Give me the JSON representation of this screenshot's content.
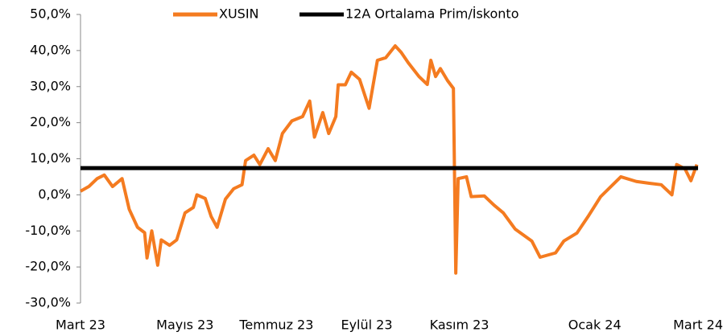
{
  "chart_data": {
    "type": "line",
    "series": [
      {
        "name": "XUSIN",
        "color": "#f47b20",
        "x": [
          0,
          0.7,
          1.4,
          2,
          2.7,
          3.5,
          4.1,
          4.8,
          5.4,
          5.6,
          6,
          6.5,
          6.8,
          7.5,
          8.1,
          8.8,
          9.5,
          9.8,
          10.5,
          11,
          11.5,
          12.2,
          12.9,
          13.6,
          13.9,
          14.6,
          15.1,
          15.8,
          16.4,
          17,
          17.8,
          18.7,
          19.3,
          19.7,
          20.4,
          20.9,
          21.5,
          21.7,
          22.3,
          22.8,
          23.5,
          24.3,
          25,
          25.7,
          26.5,
          27,
          27.6,
          28.5,
          29.2,
          29.5,
          29.9,
          30.3,
          30.9,
          31.4,
          31.6,
          31.8,
          32.5,
          32.9,
          34,
          34.8,
          35.6,
          36.6,
          38,
          38.7,
          40,
          40.7,
          41.8,
          42.8,
          43.8,
          45.5,
          46.8,
          47.9,
          48.9,
          49.8,
          50.2,
          50.9,
          51.4,
          51.9
        ],
        "values": [
          1,
          2.3,
          4.5,
          5.5,
          2.3,
          4.5,
          -4,
          -9,
          -10.5,
          -17.5,
          -10,
          -19.5,
          -12.5,
          -14,
          -12.5,
          -5,
          -3.5,
          0,
          -1,
          -6,
          -9,
          -1.2,
          1.7,
          2.8,
          9.5,
          11,
          8.4,
          12.8,
          9.5,
          17,
          20.5,
          21.7,
          26,
          16,
          22.8,
          17,
          21.7,
          30.5,
          30.5,
          34,
          32,
          24,
          37.3,
          38,
          41.3,
          39.5,
          36.6,
          32.8,
          30.6,
          37.3,
          32.8,
          35,
          31.7,
          29.5,
          -21.7,
          4.5,
          5,
          -0.5,
          -0.3,
          -2.8,
          -5,
          -9.5,
          -12.8,
          -17.3,
          -16.1,
          -12.8,
          -10.6,
          -5.7,
          -0.5,
          5,
          3.7,
          3.2,
          2.8,
          0,
          8.4,
          7.2,
          3.9,
          8.4
        ]
      },
      {
        "name": "12A Ortalama Prim/İskonto",
        "color": "#000000",
        "x": [
          0,
          52
        ],
        "values": [
          7.4,
          7.4
        ]
      }
    ],
    "xlim": [
      0,
      52.2
    ],
    "xticks": [
      {
        "value": 0,
        "label": "Mart 23"
      },
      {
        "value": 8.8,
        "label": "Mayıs 23"
      },
      {
        "value": 16.5,
        "label": "Temmuz 23"
      },
      {
        "value": 24.1,
        "label": "Eylül 23"
      },
      {
        "value": 31.9,
        "label": "Kasım 23"
      },
      {
        "value": 43.3,
        "label": "Ocak 24"
      },
      {
        "value": 52,
        "label": "Mart 24"
      }
    ],
    "ylim": [
      -30,
      50
    ],
    "yticks": [
      {
        "value": -30,
        "label": "-30,0%"
      },
      {
        "value": -20,
        "label": "-20,0%"
      },
      {
        "value": -10,
        "label": "-10,0%"
      },
      {
        "value": 0,
        "label": "0,0%"
      },
      {
        "value": 10,
        "label": "10,0%"
      },
      {
        "value": 20,
        "label": "20,0%"
      },
      {
        "value": 30,
        "label": "30,0%"
      },
      {
        "value": 40,
        "label": "40,0%"
      },
      {
        "value": 50,
        "label": "50,0%"
      }
    ],
    "legend": "top"
  }
}
